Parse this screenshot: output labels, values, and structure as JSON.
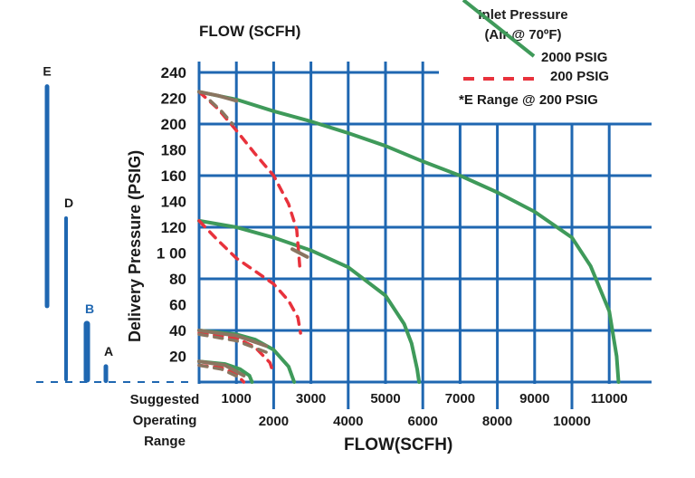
{
  "chart_data": {
    "type": "line",
    "title": "FLOW (SCFH)",
    "xlabel": "FLOW(SCFH)",
    "ylabel": "Delivery Pressure (PSIG)",
    "xlim": [
      0,
      12000
    ],
    "ylim": [
      0,
      240
    ],
    "grid": true,
    "x_ticks": [
      {
        "value": 1000,
        "label": "1000",
        "row": 1
      },
      {
        "value": 2000,
        "label": "2000",
        "row": 2
      },
      {
        "value": 3000,
        "label": "3000",
        "row": 1
      },
      {
        "value": 4000,
        "label": "4000",
        "row": 2
      },
      {
        "value": 5000,
        "label": "5000",
        "row": 1
      },
      {
        "value": 6000,
        "label": "6000",
        "row": 2
      },
      {
        "value": 7000,
        "label": "7000",
        "row": 1
      },
      {
        "value": 8000,
        "label": "8000",
        "row": 2
      },
      {
        "value": 9000,
        "label": "9000",
        "row": 1
      },
      {
        "value": 10000,
        "label": "10000",
        "row": 2
      },
      {
        "value": 11000,
        "label": "11000",
        "row": 1
      }
    ],
    "y_ticks": [
      {
        "value": 20,
        "label": "20"
      },
      {
        "value": 40,
        "label": "40"
      },
      {
        "value": 60,
        "label": "60"
      },
      {
        "value": 80,
        "label": "80"
      },
      {
        "value": 100,
        "label": "1 00"
      },
      {
        "value": 120,
        "label": "120"
      },
      {
        "value": 140,
        "label": "140"
      },
      {
        "value": 160,
        "label": "160"
      },
      {
        "value": 180,
        "label": "180"
      },
      {
        "value": 200,
        "label": "200"
      },
      {
        "value": 220,
        "label": "220"
      },
      {
        "value": 240,
        "label": "240"
      }
    ],
    "legend": {
      "title": "Inlet Pressure",
      "subtitle": "(Air @ 70ºF)",
      "position": "top-right",
      "note": "*E Range @ 200 PSIG",
      "entries": [
        {
          "label": "2000 PSIG",
          "style": "solid",
          "color": "#3f9a5a"
        },
        {
          "label": "200 PSIG",
          "style": "dashed",
          "color": "#e8323c"
        }
      ]
    },
    "series": [
      {
        "name": "2000 PSIG",
        "range": "E",
        "style": "solid",
        "color": "#3f9a5a",
        "points": [
          [
            0,
            225
          ],
          [
            1000,
            219
          ],
          [
            2000,
            210
          ],
          [
            3000,
            202
          ],
          [
            4000,
            193
          ],
          [
            5000,
            183
          ],
          [
            6000,
            171
          ],
          [
            7000,
            160
          ],
          [
            8000,
            147
          ],
          [
            9000,
            132
          ],
          [
            10000,
            112
          ],
          [
            10500,
            90
          ],
          [
            11000,
            55
          ],
          [
            11200,
            20
          ],
          [
            11250,
            0
          ]
        ]
      },
      {
        "name": "2000 PSIG",
        "range": "D",
        "style": "solid",
        "color": "#3f9a5a",
        "points": [
          [
            0,
            125
          ],
          [
            1000,
            120
          ],
          [
            2000,
            112
          ],
          [
            3000,
            102
          ],
          [
            4000,
            89
          ],
          [
            5000,
            67
          ],
          [
            5500,
            45
          ],
          [
            5700,
            30
          ],
          [
            5850,
            10
          ],
          [
            5900,
            0
          ]
        ]
      },
      {
        "name": "2000 PSIG",
        "range": "B",
        "style": "solid",
        "color": "#3f9a5a",
        "points": [
          [
            0,
            40
          ],
          [
            1000,
            37
          ],
          [
            1500,
            33
          ],
          [
            2000,
            25
          ],
          [
            2400,
            12
          ],
          [
            2550,
            0
          ]
        ]
      },
      {
        "name": "2000 PSIG",
        "range": "A",
        "style": "solid",
        "color": "#3f9a5a",
        "points": [
          [
            0,
            16
          ],
          [
            700,
            14
          ],
          [
            1100,
            10
          ],
          [
            1350,
            5
          ],
          [
            1420,
            0
          ]
        ]
      },
      {
        "name": "200 PSIG",
        "range": "E",
        "style": "dashed",
        "color": "#e8323c",
        "points": [
          [
            0,
            225
          ],
          [
            500,
            212
          ],
          [
            1000,
            195
          ],
          [
            1500,
            177
          ],
          [
            2000,
            160
          ],
          [
            2400,
            138
          ],
          [
            2620,
            118
          ],
          [
            2700,
            90
          ]
        ]
      },
      {
        "name": "200 PSIG",
        "range": "D",
        "style": "dashed",
        "color": "#e8323c",
        "points": [
          [
            0,
            125
          ],
          [
            500,
            110
          ],
          [
            1000,
            96
          ],
          [
            1500,
            86
          ],
          [
            2000,
            76
          ],
          [
            2400,
            63
          ],
          [
            2650,
            50
          ],
          [
            2720,
            38
          ]
        ]
      },
      {
        "name": "200 PSIG",
        "range": "B",
        "style": "dashed",
        "color": "#e8323c",
        "points": [
          [
            0,
            38
          ],
          [
            1000,
            34
          ],
          [
            1500,
            27
          ],
          [
            1900,
            15
          ],
          [
            2000,
            6
          ]
        ]
      },
      {
        "name": "200 PSIG",
        "range": "A",
        "style": "dashed",
        "color": "#e8323c",
        "points": [
          [
            0,
            13
          ],
          [
            600,
            11
          ],
          [
            1000,
            6
          ],
          [
            1200,
            0
          ]
        ]
      },
      {
        "style": "solid",
        "color": "#8a7560",
        "points": [
          [
            0,
            225
          ],
          [
            500,
            222
          ],
          [
            1000,
            218
          ]
        ]
      },
      {
        "style": "dashed",
        "color": "#8a7560",
        "points": [
          [
            300,
            218
          ],
          [
            600,
            210
          ],
          [
            900,
            200
          ]
        ]
      },
      {
        "style": "solid",
        "color": "#8a7560",
        "points": [
          [
            2500,
            103
          ],
          [
            2900,
            97
          ]
        ]
      },
      {
        "style": "solid",
        "color": "#8a7560",
        "points": [
          [
            0,
            40
          ],
          [
            1000,
            36
          ],
          [
            1800,
            28
          ]
        ]
      },
      {
        "style": "dashed",
        "color": "#8a7560",
        "points": [
          [
            0,
            37
          ],
          [
            1000,
            32
          ],
          [
            1900,
            22
          ]
        ]
      },
      {
        "style": "solid",
        "color": "#8a7560",
        "points": [
          [
            0,
            16
          ],
          [
            700,
            13
          ],
          [
            1200,
            5
          ]
        ]
      },
      {
        "style": "dashed",
        "color": "#8a7560",
        "points": [
          [
            0,
            13
          ],
          [
            600,
            10
          ],
          [
            1050,
            4
          ]
        ]
      }
    ],
    "operating_ranges": {
      "label": "Suggested Operating Range",
      "label_lines": [
        "Suggested",
        "Operating",
        "Range"
      ],
      "color": "#1f67b1",
      "bars": [
        {
          "name": "E",
          "min": 59,
          "max": 229
        },
        {
          "name": "D",
          "min": 2,
          "max": 127
        },
        {
          "name": "B",
          "min": 2,
          "max": 45
        },
        {
          "name": "A",
          "min": 1,
          "max": 12
        }
      ]
    },
    "grid_color": "#1f67b1"
  }
}
